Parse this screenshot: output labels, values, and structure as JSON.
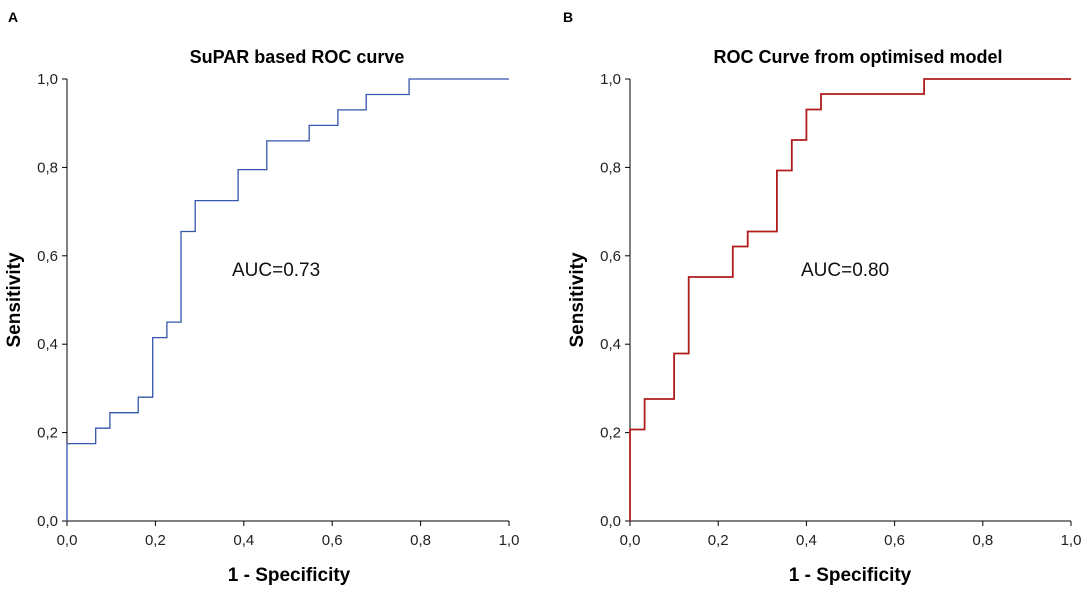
{
  "chart_data": [
    {
      "type": "line",
      "panel": "A",
      "title": "SuPAR based ROC curve",
      "xlabel": "1 - Specificity",
      "ylabel": "Sensitivity",
      "xlim": [
        0,
        1
      ],
      "ylim": [
        0,
        1
      ],
      "x_ticks": [
        "0,0",
        "0,2",
        "0,4",
        "0,6",
        "0,8",
        "1,0"
      ],
      "y_ticks": [
        "0,0",
        "0,2",
        "0,4",
        "0,6",
        "0,8",
        "1,0"
      ],
      "annotation": "AUC=0.73",
      "color": "#3355aa",
      "series": [
        {
          "name": "ROC",
          "x": [
            0,
            0,
            0.065,
            0.065,
            0.097,
            0.097,
            0.161,
            0.161,
            0.194,
            0.194,
            0.226,
            0.226,
            0.258,
            0.258,
            0.29,
            0.29,
            0.387,
            0.387,
            0.452,
            0.452,
            0.548,
            0.548,
            0.613,
            0.613,
            0.677,
            0.677,
            0.774,
            0.774,
            1.0
          ],
          "y": [
            0,
            0.175,
            0.175,
            0.21,
            0.21,
            0.245,
            0.245,
            0.28,
            0.28,
            0.415,
            0.415,
            0.45,
            0.45,
            0.655,
            0.655,
            0.725,
            0.725,
            0.795,
            0.795,
            0.86,
            0.86,
            0.895,
            0.895,
            0.93,
            0.93,
            0.965,
            0.965,
            1.0,
            1.0
          ]
        }
      ]
    },
    {
      "type": "line",
      "panel": "B",
      "title": "ROC Curve from optimised model",
      "xlabel": "1 - Specificity",
      "ylabel": "Sensitivity",
      "xlim": [
        0,
        1
      ],
      "ylim": [
        0,
        1
      ],
      "x_ticks": [
        "0,0",
        "0,2",
        "0,4",
        "0,6",
        "0,8",
        "1,0"
      ],
      "y_ticks": [
        "0,0",
        "0,2",
        "0,4",
        "0,6",
        "0,8",
        "1,0"
      ],
      "annotation": "AUC=0.80",
      "color": "#b01c1c",
      "series": [
        {
          "name": "ROC",
          "x": [
            0,
            0,
            0.033,
            0.033,
            0.1,
            0.1,
            0.133,
            0.133,
            0.233,
            0.233,
            0.267,
            0.267,
            0.333,
            0.333,
            0.367,
            0.367,
            0.4,
            0.4,
            0.433,
            0.433,
            0.667,
            0.667,
            1.0
          ],
          "y": [
            0,
            0.207,
            0.207,
            0.276,
            0.276,
            0.379,
            0.379,
            0.552,
            0.552,
            0.621,
            0.621,
            0.655,
            0.655,
            0.793,
            0.793,
            0.862,
            0.862,
            0.931,
            0.931,
            0.966,
            0.966,
            1.0,
            1.0
          ]
        }
      ]
    }
  ]
}
